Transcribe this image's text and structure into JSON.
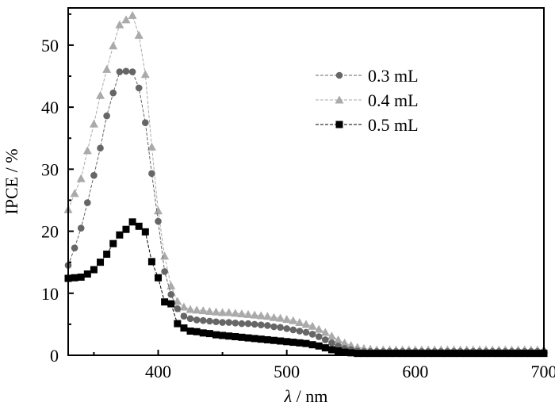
{
  "chart_data": {
    "type": "line",
    "xlabel_symbol": "λ",
    "xlabel_unit": " / nm",
    "ylabel": "IPCE / %",
    "xlim": [
      330,
      700
    ],
    "ylim": [
      0,
      56
    ],
    "x_ticks": [
      400,
      500,
      600,
      700
    ],
    "y_ticks": [
      0,
      10,
      20,
      30,
      40,
      50
    ],
    "grid": false,
    "legend_position": "top-right",
    "x": [
      330,
      335,
      340,
      345,
      350,
      355,
      360,
      365,
      370,
      375,
      380,
      385,
      390,
      395,
      400,
      405,
      410,
      415,
      420,
      425,
      430,
      435,
      440,
      445,
      450,
      455,
      460,
      465,
      470,
      475,
      480,
      485,
      490,
      495,
      500,
      505,
      510,
      515,
      520,
      525,
      530,
      535,
      540,
      545,
      550,
      555,
      560,
      565,
      570,
      575,
      580,
      585,
      590,
      595,
      600,
      605,
      610,
      615,
      620,
      625,
      630,
      635,
      640,
      645,
      650,
      655,
      660,
      665,
      670,
      675,
      680,
      685,
      690,
      695,
      700
    ],
    "series": [
      {
        "name": "0.3 mL",
        "marker": "circle",
        "color": "#666666",
        "values": [
          14.5,
          17.3,
          20.5,
          24.6,
          29.0,
          33.4,
          38.6,
          42.3,
          45.7,
          45.8,
          45.7,
          43.1,
          37.5,
          29.3,
          21.6,
          13.5,
          9.8,
          7.5,
          6.3,
          5.9,
          5.7,
          5.6,
          5.5,
          5.4,
          5.3,
          5.3,
          5.2,
          5.1,
          5.1,
          5.0,
          4.9,
          4.8,
          4.6,
          4.5,
          4.3,
          4.1,
          3.9,
          3.7,
          3.4,
          3.0,
          2.5,
          2.0,
          1.5,
          1.1,
          0.9,
          0.7,
          0.6,
          0.6,
          0.6,
          0.6,
          0.6,
          0.6,
          0.6,
          0.6,
          0.6,
          0.6,
          0.6,
          0.6,
          0.6,
          0.6,
          0.6,
          0.6,
          0.6,
          0.6,
          0.6,
          0.6,
          0.6,
          0.6,
          0.6,
          0.6,
          0.6,
          0.6,
          0.6,
          0.6,
          0.6
        ]
      },
      {
        "name": "0.4 mL",
        "marker": "triangle",
        "color": "#aaaaaa",
        "values": [
          23.5,
          26.1,
          28.5,
          33.0,
          37.3,
          41.9,
          46.1,
          49.9,
          53.3,
          54.1,
          54.8,
          51.6,
          45.3,
          33.6,
          23.3,
          16.0,
          11.2,
          8.7,
          7.8,
          7.4,
          7.3,
          7.2,
          7.1,
          7.0,
          6.9,
          6.9,
          6.8,
          6.7,
          6.6,
          6.5,
          6.4,
          6.3,
          6.1,
          6.0,
          5.8,
          5.6,
          5.3,
          5.0,
          4.7,
          4.2,
          3.7,
          3.1,
          2.5,
          2.0,
          1.6,
          1.3,
          1.1,
          1.0,
          0.9,
          0.9,
          0.9,
          0.9,
          0.9,
          0.9,
          0.9,
          0.9,
          0.9,
          0.9,
          0.9,
          0.9,
          0.9,
          0.9,
          0.9,
          0.9,
          0.9,
          0.9,
          0.9,
          0.9,
          0.9,
          0.9,
          0.9,
          0.9,
          0.9,
          0.9,
          0.9
        ]
      },
      {
        "name": "0.5 mL",
        "marker": "square",
        "color": "#000000",
        "values": [
          12.4,
          12.5,
          12.6,
          13.1,
          13.8,
          15.0,
          16.3,
          18.0,
          19.4,
          20.3,
          21.5,
          20.8,
          19.9,
          15.1,
          12.5,
          8.6,
          8.3,
          5.1,
          4.4,
          3.9,
          3.8,
          3.6,
          3.5,
          3.3,
          3.2,
          3.1,
          3.0,
          2.9,
          2.8,
          2.7,
          2.6,
          2.5,
          2.4,
          2.3,
          2.2,
          2.1,
          2.0,
          1.9,
          1.7,
          1.5,
          1.2,
          0.9,
          0.7,
          0.5,
          0.4,
          0.3,
          0.3,
          0.3,
          0.3,
          0.3,
          0.3,
          0.3,
          0.3,
          0.3,
          0.3,
          0.3,
          0.3,
          0.3,
          0.3,
          0.3,
          0.3,
          0.3,
          0.3,
          0.3,
          0.3,
          0.3,
          0.3,
          0.3,
          0.3,
          0.3,
          0.3,
          0.3,
          0.3,
          0.3,
          0.3
        ]
      }
    ]
  }
}
